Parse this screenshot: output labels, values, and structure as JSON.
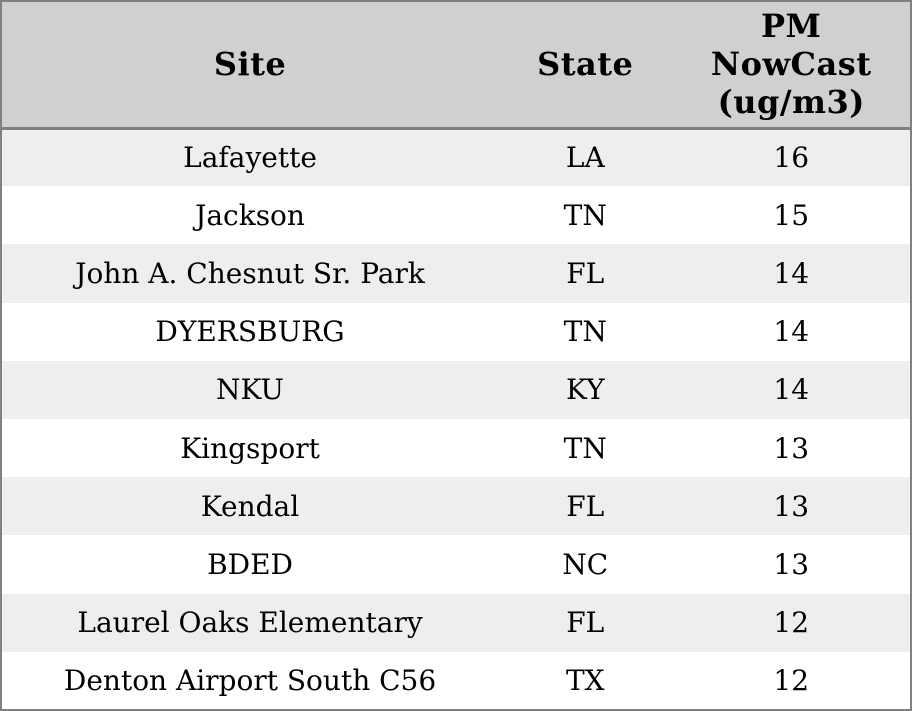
{
  "table": {
    "name": "pm-nowcast-table",
    "columns": [
      {
        "key": "site",
        "label": "Site"
      },
      {
        "key": "state",
        "label": "State"
      },
      {
        "key": "value",
        "label": "PM\nNowCast\n(ug/m3)"
      }
    ],
    "rows": [
      {
        "site": "Lafayette",
        "state": "LA",
        "value": "16"
      },
      {
        "site": "Jackson",
        "state": "TN",
        "value": "15"
      },
      {
        "site": "John A. Chesnut Sr. Park",
        "state": "FL",
        "value": "14"
      },
      {
        "site": "DYERSBURG",
        "state": "TN",
        "value": "14"
      },
      {
        "site": "NKU",
        "state": "KY",
        "value": "14"
      },
      {
        "site": "Kingsport",
        "state": "TN",
        "value": "13"
      },
      {
        "site": "Kendal",
        "state": "FL",
        "value": "13"
      },
      {
        "site": "BDED",
        "state": "NC",
        "value": "13"
      },
      {
        "site": "Laurel Oaks Elementary",
        "state": "FL",
        "value": "12"
      },
      {
        "site": "Denton Airport South C56",
        "state": "TX",
        "value": "12"
      }
    ]
  },
  "colors": {
    "header_bg": "#d0d0d0",
    "row_stripe": "#eeeeee",
    "row_plain": "#ffffff",
    "border": "#808080",
    "text": "#000000"
  },
  "chart_data": {
    "type": "table",
    "title": "",
    "columns": [
      "Site",
      "State",
      "PM NowCast (ug/m3)"
    ],
    "rows": [
      [
        "Lafayette",
        "LA",
        16
      ],
      [
        "Jackson",
        "TN",
        15
      ],
      [
        "John A. Chesnut Sr. Park",
        "FL",
        14
      ],
      [
        "DYERSBURG",
        "TN",
        14
      ],
      [
        "NKU",
        "KY",
        14
      ],
      [
        "Kingsport",
        "TN",
        13
      ],
      [
        "Kendal",
        "FL",
        13
      ],
      [
        "BDED",
        "NC",
        13
      ],
      [
        "Laurel Oaks Elementary",
        "FL",
        12
      ],
      [
        "Denton Airport South C56",
        "TX",
        12
      ]
    ],
    "layout_hints": {
      "header_background": "#d0d0d0",
      "zebra_striping": true,
      "stripe_color": "#eeeeee",
      "all_cells_center_aligned": true,
      "grid": "outer-border-and-header-rule-only"
    }
  }
}
